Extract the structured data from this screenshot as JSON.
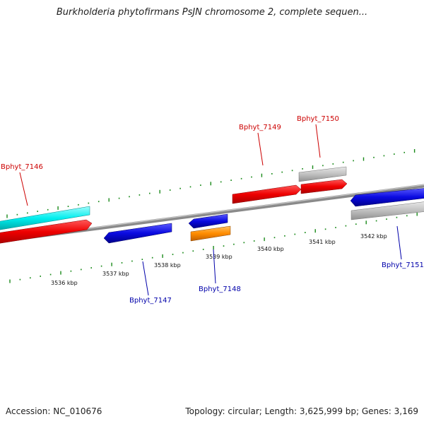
{
  "title": "Burkholderia phytofirmans PsJN chromosome 2, complete sequen...",
  "footer": {
    "accession": "Accession: NC_010676",
    "summary": "Topology: circular; Length: 3,625,999 bp; Genes: 3,169"
  },
  "ticks": [
    "3536 kbp",
    "3537 kbp",
    "3538 kbp",
    "3539 kbp",
    "3540 kbp",
    "3541 kbp",
    "3542 kbp"
  ],
  "genes": [
    {
      "name": "Bphyt_7146",
      "strand": "plus",
      "label_color": "#cc0000"
    },
    {
      "name": "Bphyt_7147",
      "strand": "minus",
      "label_color": "#0000aa"
    },
    {
      "name": "Bphyt_7148",
      "strand": "minus",
      "label_color": "#0000aa"
    },
    {
      "name": "Bphyt_7149",
      "strand": "plus",
      "label_color": "#cc0000"
    },
    {
      "name": "Bphyt_7150",
      "strand": "plus",
      "label_color": "#cc0000"
    },
    {
      "name": "Bphyt_7151",
      "strand": "minus",
      "label_color": "#0000aa"
    }
  ],
  "colors": {
    "cds_plus": "#ee0000",
    "cds_minus": "#0a0ae0",
    "feature_cyan": "#00eeee",
    "feature_orange": "#ff8c00",
    "feature_gray": "#bbbbbb",
    "backbone": "#8a8a8a",
    "tick": "#1a8a1a"
  }
}
